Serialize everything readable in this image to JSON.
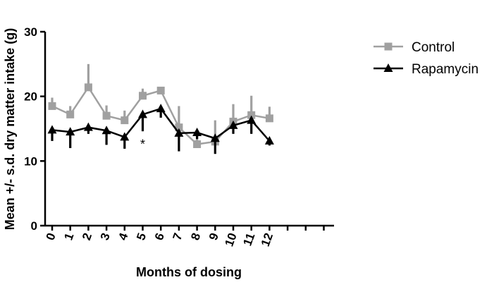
{
  "chart_data": {
    "type": "line",
    "title": "",
    "xlabel": "Months of dosing",
    "ylabel": "Mean +/- s.d. dry matter intake (g)",
    "x": [
      0,
      1,
      2,
      3,
      4,
      5,
      6,
      7,
      8,
      9,
      10,
      11,
      12
    ],
    "x_tick_labels": [
      "0",
      "1",
      "2",
      "3",
      "4",
      "5",
      "6",
      "7",
      "8",
      "9",
      "10",
      "11",
      "12"
    ],
    "xlim": [
      0,
      16
    ],
    "ylim": [
      0,
      30
    ],
    "y_ticks": [
      0,
      10,
      20,
      30
    ],
    "y_tick_labels": [
      "0",
      "10",
      "20",
      "30"
    ],
    "grid": false,
    "legend_position": "top-right",
    "series": [
      {
        "name": "Control",
        "color": "#a0a0a0",
        "marker": "square",
        "error_direction": "up",
        "values": [
          18.5,
          17.2,
          21.4,
          17.0,
          16.3,
          20.1,
          20.9,
          15.2,
          12.6,
          13.0,
          16.1,
          17.1,
          16.6
        ],
        "errors": [
          1.3,
          1.3,
          3.6,
          1.6,
          1.5,
          1.1,
          0.4,
          3.3,
          2.2,
          3.3,
          2.7,
          3.0,
          1.8
        ]
      },
      {
        "name": "Rapamycin",
        "color": "#000000",
        "marker": "triangle",
        "error_direction": "down",
        "values": [
          14.8,
          14.5,
          15.2,
          14.7,
          13.7,
          17.2,
          18.1,
          14.3,
          14.4,
          13.5,
          15.5,
          16.3,
          13.1
        ],
        "errors": [
          1.7,
          2.5,
          1.0,
          2.2,
          1.8,
          2.6,
          1.4,
          2.8,
          1.0,
          2.4,
          1.3,
          2.1,
          0.7
        ]
      }
    ],
    "annotations": [
      {
        "text": "*",
        "x": 5,
        "y": 12.8
      }
    ]
  }
}
